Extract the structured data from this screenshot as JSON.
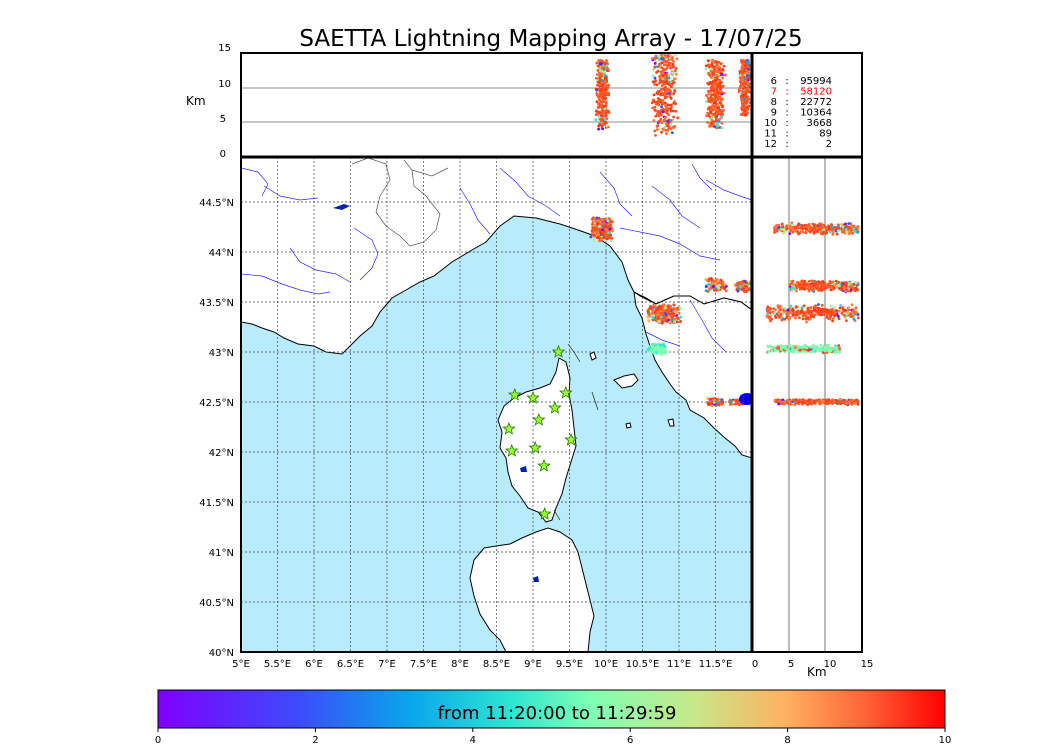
{
  "title": "SAETTA Lightning Mapping Array - 17/07/25",
  "colors": {
    "sea": "#b8ecfc",
    "land": "#ffffff",
    "coast": "#000000",
    "rivers": "#2a2aff",
    "borders": "#555555",
    "grid": "#444444",
    "station_fill": "#99ff33",
    "station_stroke": "#227700",
    "highlight_stat": "#ff0000"
  },
  "map": {
    "lon_ticks": [
      "5°E",
      "5.5°E",
      "6°E",
      "6.5°E",
      "7°E",
      "7.5°E",
      "8°E",
      "8.5°E",
      "9°E",
      "9.5°E",
      "10°E",
      "10.5°E",
      "11°E",
      "11.5°E"
    ],
    "lat_ticks": [
      "40°N",
      "40.5°N",
      "41°N",
      "41.5°N",
      "42°N",
      "42.5°N",
      "43°N",
      "43.5°N",
      "44°N",
      "44.5°N"
    ],
    "lon_range": [
      5,
      12
    ],
    "lat_range": [
      40,
      44.95
    ],
    "stations": [
      {
        "lon": 9.35,
        "lat": 43.0
      },
      {
        "lon": 8.75,
        "lat": 42.57
      },
      {
        "lon": 9.0,
        "lat": 42.54
      },
      {
        "lon": 9.45,
        "lat": 42.59
      },
      {
        "lon": 9.3,
        "lat": 42.44
      },
      {
        "lon": 9.08,
        "lat": 42.32
      },
      {
        "lon": 8.67,
        "lat": 42.23
      },
      {
        "lon": 9.52,
        "lat": 42.12
      },
      {
        "lon": 8.71,
        "lat": 42.01
      },
      {
        "lon": 9.03,
        "lat": 42.04
      },
      {
        "lon": 9.15,
        "lat": 41.86
      },
      {
        "lon": 9.16,
        "lat": 41.38
      }
    ],
    "lightning_clusters": [
      {
        "lon": 9.95,
        "lat": 44.23
      },
      {
        "lon": 10.8,
        "lat": 43.38
      },
      {
        "lon": 11.5,
        "lat": 43.67
      },
      {
        "lon": 11.9,
        "lat": 43.66
      },
      {
        "lon": 10.7,
        "lat": 43.03
      },
      {
        "lon": 11.5,
        "lat": 42.5
      },
      {
        "lon": 11.8,
        "lat": 42.5
      }
    ]
  },
  "altitude_panel": {
    "ylabel": "Km",
    "y_ticks": [
      "0",
      "5",
      "10",
      "15"
    ],
    "alt_range": [
      0,
      15
    ],
    "grid_lines": [
      5,
      10
    ]
  },
  "lat_alt_panel": {
    "xlabel": "Km",
    "x_ticks": [
      "0",
      "5",
      "10",
      "15"
    ],
    "grid_lines": [
      5,
      10
    ]
  },
  "stats": [
    {
      "stations": "6",
      "sep": ":",
      "count": "95994",
      "highlight": false
    },
    {
      "stations": "7",
      "sep": ":",
      "count": "58120",
      "highlight": true
    },
    {
      "stations": "8",
      "sep": ":",
      "count": "22772",
      "highlight": false
    },
    {
      "stations": "9",
      "sep": ":",
      "count": "10364",
      "highlight": false
    },
    {
      "stations": "10",
      "sep": ":",
      "count": "3668",
      "highlight": false
    },
    {
      "stations": "11",
      "sep": ":",
      "count": "89",
      "highlight": false
    },
    {
      "stations": "12",
      "sep": ":",
      "count": "2",
      "highlight": false
    }
  ],
  "colorbar": {
    "label": "from 11:20:00 to 11:29:59",
    "ticks": [
      "0",
      "2",
      "4",
      "6",
      "8",
      "10"
    ],
    "range": [
      0,
      10
    ]
  }
}
